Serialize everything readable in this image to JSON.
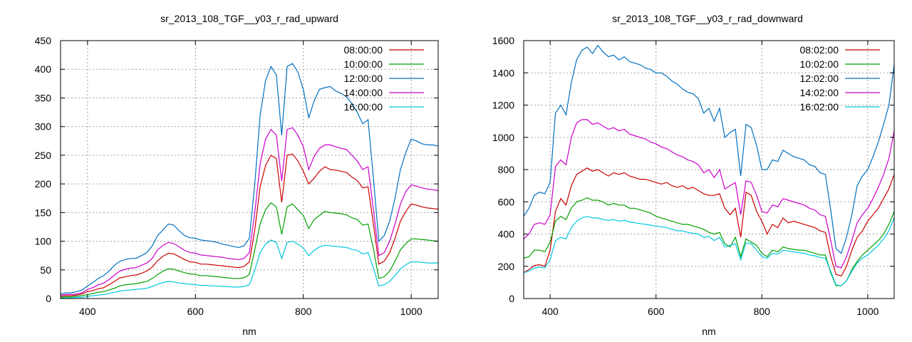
{
  "chart_data": [
    {
      "type": "line",
      "title": "sr_2013_108_TGF__y03_r_rad_upward",
      "xlabel": "nm",
      "ylabel": "",
      "xlim": [
        350,
        1050
      ],
      "ylim": [
        0,
        450
      ],
      "xticks": [
        400,
        600,
        800,
        1000
      ],
      "yticks": [
        0,
        50,
        100,
        150,
        200,
        250,
        300,
        350,
        400,
        450
      ],
      "grid": true,
      "legend_position": "top-right",
      "x": [
        350,
        360,
        370,
        380,
        390,
        400,
        410,
        420,
        430,
        440,
        450,
        460,
        470,
        480,
        490,
        500,
        510,
        520,
        530,
        540,
        550,
        560,
        570,
        580,
        590,
        600,
        610,
        620,
        630,
        640,
        650,
        660,
        670,
        680,
        690,
        700,
        710,
        720,
        730,
        740,
        750,
        760,
        770,
        780,
        790,
        800,
        810,
        820,
        830,
        840,
        850,
        860,
        870,
        880,
        890,
        900,
        910,
        920,
        930,
        940,
        950,
        960,
        970,
        980,
        990,
        1000,
        1010,
        1020,
        1030,
        1040,
        1050
      ],
      "series": [
        {
          "name": "08:00:00",
          "color": "#cc0000",
          "values": [
            4,
            5,
            5,
            6,
            8,
            12,
            14,
            17,
            19,
            24,
            30,
            36,
            38,
            40,
            41,
            44,
            48,
            55,
            66,
            74,
            79,
            78,
            73,
            68,
            64,
            63,
            60,
            60,
            59,
            58,
            57,
            56,
            55,
            54,
            56,
            64,
            120,
            195,
            232,
            250,
            244,
            168,
            250,
            252,
            240,
            222,
            200,
            210,
            222,
            230,
            225,
            224,
            222,
            220,
            212,
            206,
            193,
            195,
            130,
            60,
            65,
            80,
            105,
            135,
            152,
            165,
            163,
            160,
            158,
            157,
            156
          ]
        },
        {
          "name": "10:00:00",
          "color": "#00a000",
          "values": [
            2,
            3,
            3,
            4,
            5,
            7,
            9,
            11,
            12,
            15,
            18,
            22,
            24,
            25,
            26,
            28,
            30,
            35,
            42,
            48,
            52,
            51,
            48,
            45,
            43,
            42,
            40,
            40,
            39,
            38,
            37,
            36,
            35,
            35,
            36,
            42,
            85,
            130,
            155,
            167,
            160,
            112,
            160,
            165,
            155,
            145,
            122,
            138,
            145,
            152,
            150,
            149,
            148,
            146,
            141,
            138,
            128,
            130,
            87,
            35,
            38,
            48,
            65,
            85,
            96,
            104,
            104,
            103,
            102,
            101,
            100
          ]
        },
        {
          "name": "12:00:00",
          "color": "#0070c0",
          "values": [
            8,
            10,
            10,
            12,
            15,
            22,
            28,
            35,
            40,
            48,
            58,
            65,
            68,
            70,
            70,
            75,
            80,
            92,
            110,
            120,
            130,
            128,
            118,
            110,
            106,
            105,
            102,
            101,
            100,
            98,
            95,
            93,
            91,
            89,
            92,
            105,
            200,
            320,
            380,
            405,
            390,
            285,
            405,
            410,
            395,
            365,
            315,
            345,
            365,
            368,
            370,
            362,
            358,
            352,
            340,
            325,
            305,
            312,
            210,
            100,
            110,
            135,
            175,
            225,
            255,
            278,
            275,
            270,
            268,
            268,
            266
          ]
        },
        {
          "name": "14:00:00",
          "color": "#cc00cc",
          "values": [
            6,
            7,
            7,
            8,
            10,
            16,
            19,
            24,
            27,
            33,
            41,
            48,
            51,
            53,
            54,
            58,
            62,
            70,
            85,
            93,
            98,
            96,
            90,
            84,
            80,
            79,
            76,
            75,
            74,
            73,
            72,
            70,
            69,
            68,
            70,
            80,
            150,
            235,
            278,
            295,
            285,
            205,
            295,
            298,
            285,
            265,
            225,
            248,
            262,
            268,
            268,
            265,
            262,
            260,
            250,
            240,
            225,
            230,
            155,
            75,
            80,
            100,
            130,
            165,
            187,
            198,
            196,
            193,
            191,
            190,
            188
          ]
        },
        {
          "name": "16:00:00",
          "color": "#00c8e0",
          "values": [
            1,
            1,
            1,
            2,
            2,
            4,
            5,
            6,
            7,
            9,
            11,
            13,
            14,
            15,
            16,
            17,
            18,
            21,
            25,
            28,
            30,
            29,
            27,
            26,
            25,
            24,
            23,
            23,
            22,
            22,
            21,
            21,
            20,
            20,
            21,
            24,
            50,
            80,
            95,
            102,
            98,
            70,
            98,
            100,
            95,
            88,
            75,
            84,
            90,
            93,
            92,
            91,
            90,
            89,
            86,
            84,
            78,
            80,
            53,
            22,
            24,
            30,
            40,
            52,
            59,
            64,
            64,
            63,
            62,
            62,
            62
          ]
        }
      ]
    },
    {
      "type": "line",
      "title": "sr_2013_108_TGF__y03_r_rad_downward",
      "xlabel": "nm",
      "ylabel": "",
      "xlim": [
        350,
        1050
      ],
      "ylim": [
        0,
        1600
      ],
      "xticks": [
        400,
        600,
        800,
        1000
      ],
      "yticks": [
        0,
        200,
        400,
        600,
        800,
        1000,
        1200,
        1400,
        1600
      ],
      "grid": true,
      "legend_position": "top-right",
      "x": [
        350,
        360,
        370,
        380,
        390,
        400,
        410,
        420,
        430,
        440,
        450,
        460,
        470,
        480,
        490,
        500,
        510,
        520,
        530,
        540,
        550,
        560,
        570,
        580,
        590,
        600,
        610,
        620,
        630,
        640,
        650,
        660,
        670,
        680,
        690,
        700,
        710,
        720,
        730,
        740,
        750,
        760,
        770,
        780,
        790,
        800,
        810,
        820,
        830,
        840,
        850,
        860,
        870,
        880,
        890,
        900,
        910,
        920,
        930,
        940,
        950,
        960,
        970,
        980,
        990,
        1000,
        1010,
        1020,
        1030,
        1040,
        1050
      ],
      "series": [
        {
          "name": "08:02:00",
          "color": "#cc0000",
          "values": [
            160,
            180,
            205,
            210,
            200,
            300,
            540,
            620,
            580,
            700,
            770,
            790,
            810,
            790,
            800,
            780,
            760,
            780,
            770,
            780,
            760,
            750,
            740,
            740,
            730,
            720,
            710,
            720,
            700,
            690,
            700,
            680,
            690,
            670,
            650,
            640,
            640,
            650,
            560,
            520,
            560,
            380,
            660,
            640,
            540,
            480,
            400,
            460,
            440,
            500,
            470,
            480,
            470,
            460,
            450,
            440,
            420,
            410,
            260,
            150,
            140,
            200,
            300,
            380,
            420,
            480,
            520,
            560,
            620,
            680,
            770
          ]
        },
        {
          "name": "10:02:00",
          "color": "#00a000",
          "values": [
            250,
            260,
            300,
            300,
            290,
            350,
            480,
            510,
            490,
            560,
            600,
            610,
            625,
            610,
            610,
            600,
            580,
            590,
            580,
            580,
            560,
            560,
            550,
            540,
            530,
            510,
            500,
            490,
            480,
            470,
            460,
            460,
            450,
            440,
            430,
            410,
            400,
            410,
            340,
            320,
            380,
            260,
            370,
            350,
            330,
            280,
            260,
            300,
            290,
            320,
            310,
            305,
            300,
            300,
            290,
            280,
            270,
            270,
            160,
            80,
            80,
            110,
            180,
            230,
            270,
            300,
            330,
            360,
            400,
            460,
            540
          ]
        },
        {
          "name": "12:02:00",
          "color": "#0070c0",
          "values": [
            510,
            560,
            640,
            660,
            650,
            720,
            1150,
            1200,
            1140,
            1340,
            1480,
            1540,
            1560,
            1520,
            1570,
            1530,
            1500,
            1510,
            1480,
            1500,
            1470,
            1460,
            1450,
            1430,
            1420,
            1400,
            1400,
            1380,
            1350,
            1330,
            1300,
            1280,
            1270,
            1240,
            1150,
            1180,
            1100,
            1180,
            1000,
            1030,
            1050,
            760,
            1080,
            1060,
            950,
            800,
            800,
            860,
            850,
            920,
            900,
            880,
            870,
            860,
            830,
            820,
            780,
            770,
            550,
            310,
            280,
            380,
            520,
            700,
            760,
            800,
            880,
            970,
            1080,
            1200,
            1450
          ]
        },
        {
          "name": "14:02:00",
          "color": "#cc00cc",
          "values": [
            370,
            400,
            460,
            470,
            460,
            520,
            820,
            860,
            830,
            1000,
            1090,
            1110,
            1110,
            1080,
            1090,
            1070,
            1050,
            1060,
            1040,
            1050,
            1020,
            1010,
            1000,
            990,
            970,
            960,
            940,
            930,
            910,
            890,
            880,
            860,
            850,
            830,
            780,
            800,
            750,
            800,
            680,
            700,
            720,
            520,
            730,
            720,
            640,
            540,
            530,
            580,
            570,
            620,
            610,
            600,
            590,
            580,
            560,
            550,
            520,
            510,
            360,
            200,
            190,
            260,
            360,
            470,
            520,
            560,
            620,
            690,
            770,
            870,
            1040
          ]
        },
        {
          "name": "16:02:00",
          "color": "#00c8e0",
          "values": [
            160,
            170,
            190,
            195,
            190,
            240,
            360,
            380,
            370,
            440,
            480,
            500,
            510,
            500,
            500,
            490,
            485,
            490,
            480,
            485,
            475,
            470,
            465,
            460,
            455,
            450,
            445,
            440,
            430,
            420,
            420,
            410,
            405,
            400,
            380,
            385,
            360,
            380,
            320,
            330,
            340,
            240,
            345,
            340,
            300,
            260,
            250,
            280,
            275,
            300,
            295,
            290,
            285,
            280,
            270,
            265,
            255,
            250,
            170,
            85,
            80,
            110,
            170,
            220,
            250,
            270,
            300,
            330,
            370,
            420,
            500
          ]
        }
      ]
    }
  ]
}
